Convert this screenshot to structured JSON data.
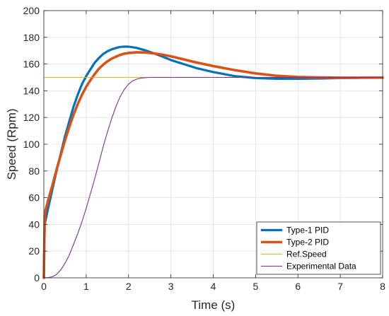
{
  "chart_data": {
    "type": "line",
    "xlabel": "Time (s)",
    "ylabel": "Speed (Rpm)",
    "xlim": [
      0,
      8
    ],
    "ylim": [
      0,
      200
    ],
    "xticks": [
      0,
      1,
      2,
      3,
      4,
      5,
      6,
      7,
      8
    ],
    "yticks": [
      0,
      20,
      40,
      60,
      80,
      100,
      120,
      140,
      160,
      180,
      200
    ],
    "grid": true,
    "legend_position": "bottom-right",
    "series": [
      {
        "name": "Type-1 PID",
        "color": "#0072BD",
        "x": [
          0,
          0.02,
          0.1,
          0.2,
          0.3,
          0.4,
          0.5,
          0.6,
          0.7,
          0.8,
          0.9,
          1.0,
          1.1,
          1.2,
          1.3,
          1.4,
          1.5,
          1.6,
          1.7,
          1.8,
          1.9,
          2.0,
          2.1,
          2.2,
          2.4,
          2.6,
          2.8,
          3.0,
          3.3,
          3.6,
          4.0,
          4.5,
          5.0,
          5.5,
          6.0,
          6.5,
          7.0,
          7.5,
          8.0
        ],
        "y": [
          0,
          40,
          52,
          66,
          80,
          93,
          106,
          117,
          128,
          137,
          145,
          151,
          156,
          161,
          164.5,
          167.5,
          169.5,
          171,
          172,
          172.8,
          173,
          173,
          172.6,
          172,
          170.2,
          168,
          165.6,
          163,
          160,
          157,
          154,
          151,
          149.5,
          149,
          149,
          149.2,
          149.5,
          149.7,
          149.8
        ]
      },
      {
        "name": "Type-2 PID",
        "color": "#D95319",
        "x": [
          0,
          0.02,
          0.1,
          0.2,
          0.3,
          0.4,
          0.5,
          0.6,
          0.7,
          0.8,
          0.9,
          1.0,
          1.1,
          1.2,
          1.3,
          1.4,
          1.5,
          1.6,
          1.7,
          1.8,
          1.9,
          2.0,
          2.2,
          2.4,
          2.6,
          2.8,
          3.0,
          3.3,
          3.6,
          4.0,
          4.5,
          5.0,
          5.5,
          6.0,
          6.5,
          7.0,
          7.5,
          8.0
        ],
        "y": [
          0,
          48,
          58,
          69,
          81,
          92,
          103,
          113,
          122,
          130,
          137,
          143,
          148,
          152.5,
          156.5,
          159.5,
          162,
          164,
          165.5,
          166.8,
          167.8,
          168.3,
          168.8,
          168.6,
          168,
          167,
          165.8,
          163.5,
          161.2,
          158.5,
          155.5,
          153,
          151.2,
          150.3,
          150,
          149.8,
          149.8,
          149.8
        ]
      },
      {
        "name": "Ref.Speed",
        "color": "#EDB120",
        "x": [
          0,
          8
        ],
        "y": [
          150,
          150
        ]
      },
      {
        "name": "Experimental Data",
        "color": "#7E2F8E",
        "x": [
          0,
          0.1,
          0.2,
          0.3,
          0.4,
          0.5,
          0.6,
          0.7,
          0.8,
          0.9,
          1.0,
          1.1,
          1.2,
          1.3,
          1.4,
          1.5,
          1.6,
          1.7,
          1.8,
          1.9,
          2.0,
          2.1,
          2.2,
          2.3,
          2.4,
          2.5,
          2.6,
          2.7,
          3.0,
          4.0,
          5.0,
          6.0,
          7.0,
          8.0
        ],
        "y": [
          0,
          0.2,
          0.8,
          2.5,
          6,
          11,
          17,
          25,
          33,
          42,
          52,
          63,
          74,
          86,
          98,
          109,
          119,
          128,
          135.5,
          141,
          145,
          147.5,
          148.8,
          149.5,
          149.8,
          150,
          150,
          150,
          150,
          150,
          150,
          150,
          150,
          150
        ]
      }
    ]
  }
}
